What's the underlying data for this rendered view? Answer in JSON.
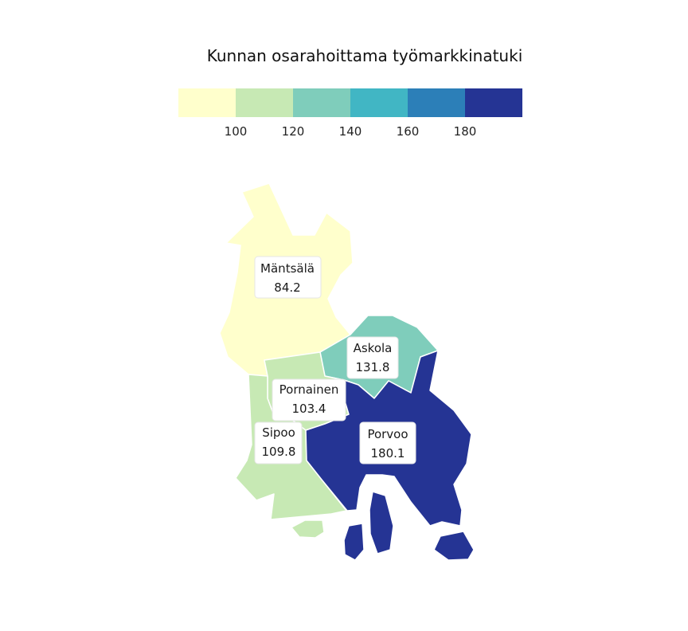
{
  "title": "Kunnan osarahoittama työmarkkinatuki",
  "legend": {
    "breaks": [
      "100",
      "120",
      "140",
      "160",
      "180"
    ],
    "colors": [
      "#ffffcc",
      "#c7e9b4",
      "#7fcdbb",
      "#41b6c4",
      "#2c7fb8",
      "#253494"
    ]
  },
  "regions": {
    "mantsala": {
      "name": "Mäntsälä",
      "value": "84.2",
      "color": "#ffffcc"
    },
    "askola": {
      "name": "Askola",
      "value": "131.8",
      "color": "#7fcdbb"
    },
    "pornainen": {
      "name": "Pornainen",
      "value": "103.4",
      "color": "#c7e9b4"
    },
    "sipoo": {
      "name": "Sipoo",
      "value": "109.8",
      "color": "#c7e9b4"
    },
    "porvoo": {
      "name": "Porvoo",
      "value": "180.1",
      "color": "#253494"
    }
  }
}
